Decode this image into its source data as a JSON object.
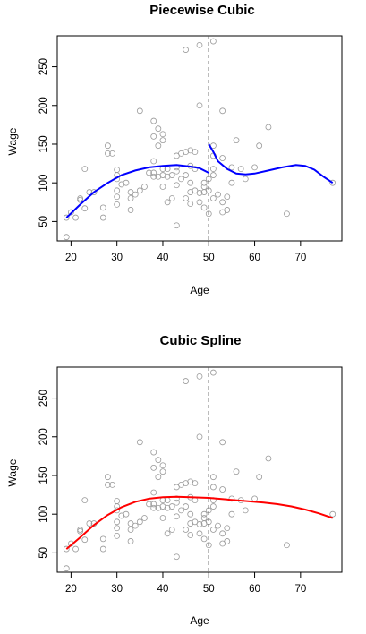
{
  "chart_data": [
    {
      "type": "scatter",
      "title": "Piecewise Cubic",
      "xlabel": "Age",
      "ylabel": "Wage",
      "xlim": [
        17,
        79
      ],
      "ylim": [
        25,
        290
      ],
      "xticks": [
        20,
        30,
        40,
        50,
        60,
        70
      ],
      "yticks": [
        50,
        100,
        150,
        200,
        250
      ],
      "grid": false,
      "knot": 50,
      "curve_color": "#0000ff",
      "points": [
        [
          19,
          30
        ],
        [
          19,
          55
        ],
        [
          20,
          62
        ],
        [
          21,
          55
        ],
        [
          22,
          80
        ],
        [
          22,
          78
        ],
        [
          23,
          67
        ],
        [
          23,
          118
        ],
        [
          24,
          88
        ],
        [
          25,
          88
        ],
        [
          27,
          68
        ],
        [
          27,
          55
        ],
        [
          28,
          148
        ],
        [
          28,
          138
        ],
        [
          29,
          138
        ],
        [
          30,
          117
        ],
        [
          30,
          110
        ],
        [
          30,
          105
        ],
        [
          30,
          90
        ],
        [
          30,
          82
        ],
        [
          30,
          72
        ],
        [
          31,
          98
        ],
        [
          32,
          100
        ],
        [
          33,
          88
        ],
        [
          33,
          80
        ],
        [
          33,
          65
        ],
        [
          34,
          85
        ],
        [
          35,
          193
        ],
        [
          35,
          90
        ],
        [
          36,
          95
        ],
        [
          37,
          113
        ],
        [
          38,
          180
        ],
        [
          38,
          160
        ],
        [
          38,
          128
        ],
        [
          38,
          113
        ],
        [
          38,
          108
        ],
        [
          39,
          170
        ],
        [
          39,
          148
        ],
        [
          39,
          108
        ],
        [
          40,
          163
        ],
        [
          40,
          155
        ],
        [
          40,
          118
        ],
        [
          40,
          110
        ],
        [
          40,
          95
        ],
        [
          41,
          118
        ],
        [
          41,
          108
        ],
        [
          41,
          75
        ],
        [
          42,
          110
        ],
        [
          42,
          80
        ],
        [
          43,
          135
        ],
        [
          43,
          120
        ],
        [
          43,
          115
        ],
        [
          43,
          97
        ],
        [
          43,
          45
        ],
        [
          44,
          138
        ],
        [
          44,
          105
        ],
        [
          45,
          272
        ],
        [
          45,
          140
        ],
        [
          45,
          110
        ],
        [
          45,
          80
        ],
        [
          46,
          142
        ],
        [
          46,
          122
        ],
        [
          46,
          100
        ],
        [
          46,
          88
        ],
        [
          46,
          73
        ],
        [
          47,
          140
        ],
        [
          47,
          118
        ],
        [
          47,
          90
        ],
        [
          48,
          278
        ],
        [
          48,
          200
        ],
        [
          48,
          87
        ],
        [
          48,
          75
        ],
        [
          49,
          100
        ],
        [
          49,
          95
        ],
        [
          49,
          68
        ],
        [
          49,
          88
        ],
        [
          50,
          105
        ],
        [
          50,
          90
        ],
        [
          50,
          60
        ],
        [
          51,
          283
        ],
        [
          51,
          148
        ],
        [
          51,
          135
        ],
        [
          51,
          118
        ],
        [
          51,
          110
        ],
        [
          51,
          80
        ],
        [
          52,
          85
        ],
        [
          53,
          193
        ],
        [
          53,
          132
        ],
        [
          53,
          75
        ],
        [
          53,
          62
        ],
        [
          54,
          65
        ],
        [
          54,
          82
        ],
        [
          55,
          120
        ],
        [
          55,
          100
        ],
        [
          56,
          155
        ],
        [
          57,
          118
        ],
        [
          58,
          105
        ],
        [
          60,
          120
        ],
        [
          61,
          148
        ],
        [
          63,
          172
        ],
        [
          67,
          60
        ],
        [
          77,
          100
        ]
      ],
      "curve": [
        [
          19,
          55
        ],
        [
          22,
          72
        ],
        [
          25,
          88
        ],
        [
          28,
          100
        ],
        [
          31,
          110
        ],
        [
          34,
          116
        ],
        [
          37,
          120
        ],
        [
          40,
          122
        ],
        [
          43,
          123
        ],
        [
          46,
          121
        ],
        [
          48,
          119
        ],
        [
          50,
          113
        ],
        [
          50,
          150
        ],
        [
          51,
          140
        ],
        [
          52,
          128
        ],
        [
          54,
          118
        ],
        [
          56,
          112
        ],
        [
          58,
          111
        ],
        [
          60,
          112
        ],
        [
          63,
          116
        ],
        [
          66,
          120
        ],
        [
          69,
          123
        ],
        [
          71,
          122
        ],
        [
          73,
          117
        ],
        [
          75,
          108
        ],
        [
          77,
          100
        ]
      ]
    },
    {
      "type": "scatter",
      "title": "Cubic Spline",
      "xlabel": "Age",
      "ylabel": "Wage",
      "xlim": [
        17,
        79
      ],
      "ylim": [
        25,
        290
      ],
      "xticks": [
        20,
        30,
        40,
        50,
        60,
        70
      ],
      "yticks": [
        50,
        100,
        150,
        200,
        250
      ],
      "grid": false,
      "knot": 50,
      "curve_color": "#ff0000",
      "points": [
        [
          19,
          30
        ],
        [
          19,
          55
        ],
        [
          20,
          62
        ],
        [
          21,
          55
        ],
        [
          22,
          80
        ],
        [
          22,
          78
        ],
        [
          23,
          67
        ],
        [
          23,
          118
        ],
        [
          24,
          88
        ],
        [
          25,
          88
        ],
        [
          27,
          68
        ],
        [
          27,
          55
        ],
        [
          28,
          148
        ],
        [
          28,
          138
        ],
        [
          29,
          138
        ],
        [
          30,
          117
        ],
        [
          30,
          110
        ],
        [
          30,
          105
        ],
        [
          30,
          90
        ],
        [
          30,
          82
        ],
        [
          30,
          72
        ],
        [
          31,
          98
        ],
        [
          32,
          100
        ],
        [
          33,
          88
        ],
        [
          33,
          80
        ],
        [
          33,
          65
        ],
        [
          34,
          85
        ],
        [
          35,
          193
        ],
        [
          35,
          90
        ],
        [
          36,
          95
        ],
        [
          37,
          113
        ],
        [
          38,
          180
        ],
        [
          38,
          160
        ],
        [
          38,
          128
        ],
        [
          38,
          113
        ],
        [
          38,
          108
        ],
        [
          39,
          170
        ],
        [
          39,
          148
        ],
        [
          39,
          108
        ],
        [
          40,
          163
        ],
        [
          40,
          155
        ],
        [
          40,
          118
        ],
        [
          40,
          110
        ],
        [
          40,
          95
        ],
        [
          41,
          118
        ],
        [
          41,
          108
        ],
        [
          41,
          75
        ],
        [
          42,
          110
        ],
        [
          42,
          80
        ],
        [
          43,
          135
        ],
        [
          43,
          120
        ],
        [
          43,
          115
        ],
        [
          43,
          97
        ],
        [
          43,
          45
        ],
        [
          44,
          138
        ],
        [
          44,
          105
        ],
        [
          45,
          272
        ],
        [
          45,
          140
        ],
        [
          45,
          110
        ],
        [
          45,
          80
        ],
        [
          46,
          142
        ],
        [
          46,
          122
        ],
        [
          46,
          100
        ],
        [
          46,
          88
        ],
        [
          46,
          73
        ],
        [
          47,
          140
        ],
        [
          47,
          118
        ],
        [
          47,
          90
        ],
        [
          48,
          278
        ],
        [
          48,
          200
        ],
        [
          48,
          87
        ],
        [
          48,
          75
        ],
        [
          49,
          100
        ],
        [
          49,
          95
        ],
        [
          49,
          68
        ],
        [
          49,
          88
        ],
        [
          50,
          105
        ],
        [
          50,
          90
        ],
        [
          50,
          60
        ],
        [
          51,
          283
        ],
        [
          51,
          148
        ],
        [
          51,
          135
        ],
        [
          51,
          118
        ],
        [
          51,
          110
        ],
        [
          51,
          80
        ],
        [
          52,
          85
        ],
        [
          53,
          193
        ],
        [
          53,
          132
        ],
        [
          53,
          75
        ],
        [
          53,
          62
        ],
        [
          54,
          65
        ],
        [
          54,
          82
        ],
        [
          55,
          120
        ],
        [
          55,
          100
        ],
        [
          56,
          155
        ],
        [
          57,
          118
        ],
        [
          58,
          105
        ],
        [
          60,
          120
        ],
        [
          61,
          148
        ],
        [
          63,
          172
        ],
        [
          67,
          60
        ],
        [
          77,
          100
        ]
      ],
      "curve": [
        [
          19,
          55
        ],
        [
          22,
          70
        ],
        [
          25,
          86
        ],
        [
          28,
          99
        ],
        [
          31,
          109
        ],
        [
          34,
          116
        ],
        [
          37,
          120
        ],
        [
          40,
          122
        ],
        [
          43,
          122.5
        ],
        [
          46,
          122
        ],
        [
          50,
          121
        ],
        [
          54,
          119
        ],
        [
          58,
          117
        ],
        [
          62,
          115
        ],
        [
          65,
          113
        ],
        [
          68,
          110
        ],
        [
          71,
          106
        ],
        [
          74,
          101
        ],
        [
          77,
          95
        ]
      ]
    }
  ]
}
